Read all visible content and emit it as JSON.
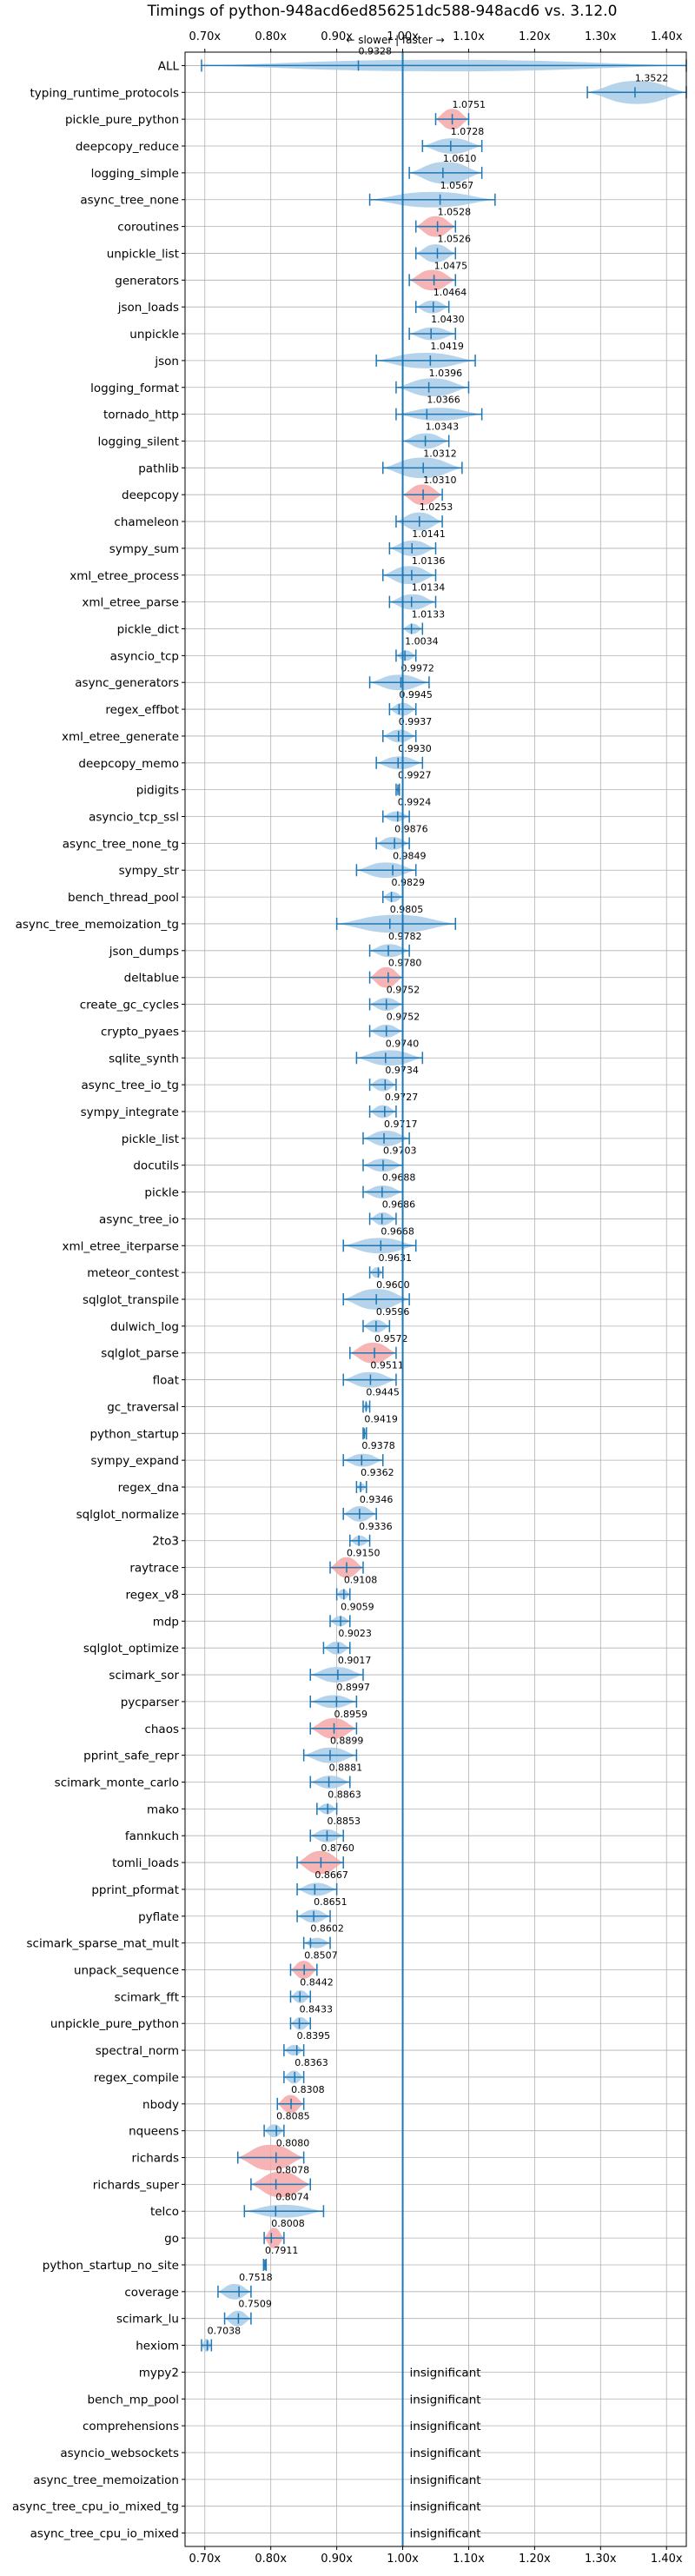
{
  "chart_data": {
    "type": "violin",
    "title": "Timings of python-948acd6ed856251dc588-948acd6 vs. 3.12.0",
    "direction_label": "← slower | faster →",
    "xlim": [
      0.67,
      1.43
    ],
    "reference_line": 1.0,
    "grid": true,
    "x_ticks": [
      {
        "value": 0.7,
        "label": "0.70x"
      },
      {
        "value": 0.8,
        "label": "0.80x"
      },
      {
        "value": 0.9,
        "label": "0.90x"
      },
      {
        "value": 1.0,
        "label": "1.00x"
      },
      {
        "value": 1.1,
        "label": "1.10x"
      },
      {
        "value": 1.2,
        "label": "1.20x"
      },
      {
        "value": 1.3,
        "label": "1.30x"
      },
      {
        "value": 1.4,
        "label": "1.40x"
      }
    ],
    "colors": {
      "regular": "#a8cbe8",
      "highlight": "#f4a7a8",
      "line": "#1f77b4"
    },
    "categories": [
      {
        "name": "ALL",
        "value": 0.9328,
        "label": "0.9328",
        "lo": 0.695,
        "hi": 1.43,
        "w": 0.45,
        "hl": false
      },
      {
        "name": "typing_runtime_protocols",
        "value": 1.3522,
        "label": "1.3522",
        "lo": 1.28,
        "hi": 1.43,
        "w": 0.9,
        "hl": false
      },
      {
        "name": "pickle_pure_python",
        "value": 1.0751,
        "label": "1.0751",
        "lo": 1.05,
        "hi": 1.1,
        "w": 0.8,
        "hl": true
      },
      {
        "name": "deepcopy_reduce",
        "value": 1.0728,
        "label": "1.0728",
        "lo": 1.03,
        "hi": 1.12,
        "w": 0.6,
        "hl": false
      },
      {
        "name": "logging_simple",
        "value": 1.061,
        "label": "1.0610",
        "lo": 1.01,
        "hi": 1.12,
        "w": 0.85,
        "hl": false
      },
      {
        "name": "async_tree_none",
        "value": 1.0567,
        "label": "1.0567",
        "lo": 0.95,
        "hi": 1.14,
        "w": 0.6,
        "hl": false
      },
      {
        "name": "coroutines",
        "value": 1.0528,
        "label": "1.0528",
        "lo": 1.02,
        "hi": 1.08,
        "w": 0.8,
        "hl": true
      },
      {
        "name": "unpickle_list",
        "value": 1.0526,
        "label": "1.0526",
        "lo": 1.02,
        "hi": 1.08,
        "w": 0.7,
        "hl": false
      },
      {
        "name": "generators",
        "value": 1.0475,
        "label": "1.0475",
        "lo": 1.01,
        "hi": 1.08,
        "w": 0.8,
        "hl": true
      },
      {
        "name": "json_loads",
        "value": 1.0464,
        "label": "1.0464",
        "lo": 1.02,
        "hi": 1.07,
        "w": 0.5,
        "hl": false
      },
      {
        "name": "unpickle",
        "value": 1.043,
        "label": "1.0430",
        "lo": 1.01,
        "hi": 1.08,
        "w": 0.5,
        "hl": false
      },
      {
        "name": "json",
        "value": 1.0419,
        "label": "1.0419",
        "lo": 0.96,
        "hi": 1.11,
        "w": 0.6,
        "hl": false
      },
      {
        "name": "logging_format",
        "value": 1.0396,
        "label": "1.0396",
        "lo": 0.99,
        "hi": 1.1,
        "w": 0.7,
        "hl": false
      },
      {
        "name": "tornado_http",
        "value": 1.0366,
        "label": "1.0366",
        "lo": 0.99,
        "hi": 1.12,
        "w": 0.5,
        "hl": false
      },
      {
        "name": "logging_silent",
        "value": 1.0343,
        "label": "1.0343",
        "lo": 1.0,
        "hi": 1.07,
        "w": 0.6,
        "hl": false
      },
      {
        "name": "pathlib",
        "value": 1.0312,
        "label": "1.0312",
        "lo": 0.97,
        "hi": 1.09,
        "w": 0.8,
        "hl": false
      },
      {
        "name": "deepcopy",
        "value": 1.031,
        "label": "1.0310",
        "lo": 1.0,
        "hi": 1.06,
        "w": 0.8,
        "hl": true
      },
      {
        "name": "chameleon",
        "value": 1.0253,
        "label": "1.0253",
        "lo": 0.99,
        "hi": 1.06,
        "w": 0.7,
        "hl": false
      },
      {
        "name": "sympy_sum",
        "value": 1.0141,
        "label": "1.0141",
        "lo": 0.98,
        "hi": 1.05,
        "w": 0.6,
        "hl": false
      },
      {
        "name": "xml_etree_process",
        "value": 1.0136,
        "label": "1.0136",
        "lo": 0.97,
        "hi": 1.05,
        "w": 0.7,
        "hl": false
      },
      {
        "name": "xml_etree_parse",
        "value": 1.0134,
        "label": "1.0134",
        "lo": 0.98,
        "hi": 1.05,
        "w": 0.6,
        "hl": false
      },
      {
        "name": "pickle_dict",
        "value": 1.0133,
        "label": "1.0133",
        "lo": 1.0,
        "hi": 1.03,
        "w": 0.4,
        "hl": false
      },
      {
        "name": "asyncio_tcp",
        "value": 1.0034,
        "label": "1.0034",
        "lo": 0.99,
        "hi": 1.02,
        "w": 0.4,
        "hl": false
      },
      {
        "name": "async_generators",
        "value": 0.9972,
        "label": "0.9972",
        "lo": 0.95,
        "hi": 1.04,
        "w": 0.6,
        "hl": false
      },
      {
        "name": "regex_effbot",
        "value": 0.9945,
        "label": "0.9945",
        "lo": 0.98,
        "hi": 1.02,
        "w": 0.5,
        "hl": false
      },
      {
        "name": "xml_etree_generate",
        "value": 0.9937,
        "label": "0.9937",
        "lo": 0.97,
        "hi": 1.02,
        "w": 0.5,
        "hl": false
      },
      {
        "name": "deepcopy_memo",
        "value": 0.993,
        "label": "0.9930",
        "lo": 0.96,
        "hi": 1.03,
        "w": 0.5,
        "hl": false
      },
      {
        "name": "pidigits",
        "value": 0.9927,
        "label": "0.9927",
        "lo": 0.99,
        "hi": 0.995,
        "w": 0.2,
        "hl": false
      },
      {
        "name": "asyncio_tcp_ssl",
        "value": 0.9924,
        "label": "0.9924",
        "lo": 0.97,
        "hi": 1.01,
        "w": 0.4,
        "hl": false
      },
      {
        "name": "async_tree_none_tg",
        "value": 0.9876,
        "label": "0.9876",
        "lo": 0.96,
        "hi": 1.01,
        "w": 0.5,
        "hl": false
      },
      {
        "name": "sympy_str",
        "value": 0.9849,
        "label": "0.9849",
        "lo": 0.93,
        "hi": 1.02,
        "w": 0.6,
        "hl": false
      },
      {
        "name": "bench_thread_pool",
        "value": 0.9829,
        "label": "0.9829",
        "lo": 0.97,
        "hi": 1.0,
        "w": 0.4,
        "hl": false
      },
      {
        "name": "async_tree_memoization_tg",
        "value": 0.9805,
        "label": "0.9805",
        "lo": 0.9,
        "hi": 1.08,
        "w": 0.7,
        "hl": false
      },
      {
        "name": "json_dumps",
        "value": 0.9782,
        "label": "0.9782",
        "lo": 0.95,
        "hi": 1.01,
        "w": 0.5,
        "hl": false
      },
      {
        "name": "deltablue",
        "value": 0.978,
        "label": "0.9780",
        "lo": 0.95,
        "hi": 1.0,
        "w": 0.8,
        "hl": true
      },
      {
        "name": "create_gc_cycles",
        "value": 0.9752,
        "label": "0.9752",
        "lo": 0.95,
        "hi": 1.0,
        "w": 0.5,
        "hl": false
      },
      {
        "name": "crypto_pyaes",
        "value": 0.9752,
        "label": "0.9752",
        "lo": 0.95,
        "hi": 1.0,
        "w": 0.5,
        "hl": false
      },
      {
        "name": "sqlite_synth",
        "value": 0.974,
        "label": "0.9740",
        "lo": 0.93,
        "hi": 1.03,
        "w": 0.6,
        "hl": false
      },
      {
        "name": "async_tree_io_tg",
        "value": 0.9734,
        "label": "0.9734",
        "lo": 0.95,
        "hi": 0.99,
        "w": 0.5,
        "hl": false
      },
      {
        "name": "sympy_integrate",
        "value": 0.9727,
        "label": "0.9727",
        "lo": 0.95,
        "hi": 0.99,
        "w": 0.5,
        "hl": false
      },
      {
        "name": "pickle_list",
        "value": 0.9717,
        "label": "0.9717",
        "lo": 0.94,
        "hi": 1.01,
        "w": 0.6,
        "hl": false
      },
      {
        "name": "docutils",
        "value": 0.9703,
        "label": "0.9703",
        "lo": 0.94,
        "hi": 1.0,
        "w": 0.5,
        "hl": false
      },
      {
        "name": "pickle",
        "value": 0.9688,
        "label": "0.9688",
        "lo": 0.94,
        "hi": 1.0,
        "w": 0.5,
        "hl": false
      },
      {
        "name": "async_tree_io",
        "value": 0.9686,
        "label": "0.9686",
        "lo": 0.95,
        "hi": 0.99,
        "w": 0.5,
        "hl": false
      },
      {
        "name": "xml_etree_iterparse",
        "value": 0.9668,
        "label": "0.9668",
        "lo": 0.91,
        "hi": 1.02,
        "w": 0.6,
        "hl": false
      },
      {
        "name": "meteor_contest",
        "value": 0.9631,
        "label": "0.9631",
        "lo": 0.95,
        "hi": 0.97,
        "w": 0.4,
        "hl": false
      },
      {
        "name": "sqlglot_transpile",
        "value": 0.96,
        "label": "0.9600",
        "lo": 0.91,
        "hi": 1.01,
        "w": 0.8,
        "hl": false
      },
      {
        "name": "dulwich_log",
        "value": 0.9596,
        "label": "0.9596",
        "lo": 0.94,
        "hi": 0.98,
        "w": 0.5,
        "hl": false
      },
      {
        "name": "sqlglot_parse",
        "value": 0.9572,
        "label": "0.9572",
        "lo": 0.92,
        "hi": 0.99,
        "w": 0.8,
        "hl": true
      },
      {
        "name": "float",
        "value": 0.9511,
        "label": "0.9511",
        "lo": 0.91,
        "hi": 0.99,
        "w": 0.6,
        "hl": false
      },
      {
        "name": "gc_traversal",
        "value": 0.9445,
        "label": "0.9445",
        "lo": 0.94,
        "hi": 0.95,
        "w": 0.3,
        "hl": false
      },
      {
        "name": "python_startup",
        "value": 0.9419,
        "label": "0.9419",
        "lo": 0.94,
        "hi": 0.945,
        "w": 0.3,
        "hl": false
      },
      {
        "name": "sympy_expand",
        "value": 0.9378,
        "label": "0.9378",
        "lo": 0.91,
        "hi": 0.97,
        "w": 0.5,
        "hl": false
      },
      {
        "name": "regex_dna",
        "value": 0.9362,
        "label": "0.9362",
        "lo": 0.93,
        "hi": 0.945,
        "w": 0.3,
        "hl": false
      },
      {
        "name": "sqlglot_normalize",
        "value": 0.9346,
        "label": "0.9346",
        "lo": 0.91,
        "hi": 0.96,
        "w": 0.6,
        "hl": false
      },
      {
        "name": "2to3",
        "value": 0.9336,
        "label": "0.9336",
        "lo": 0.92,
        "hi": 0.95,
        "w": 0.4,
        "hl": false
      },
      {
        "name": "raytrace",
        "value": 0.915,
        "label": "0.9150",
        "lo": 0.89,
        "hi": 0.94,
        "w": 0.8,
        "hl": true
      },
      {
        "name": "regex_v8",
        "value": 0.9108,
        "label": "0.9108",
        "lo": 0.9,
        "hi": 0.92,
        "w": 0.4,
        "hl": false
      },
      {
        "name": "mdp",
        "value": 0.9059,
        "label": "0.9059",
        "lo": 0.89,
        "hi": 0.92,
        "w": 0.4,
        "hl": false
      },
      {
        "name": "sqlglot_optimize",
        "value": 0.9023,
        "label": "0.9023",
        "lo": 0.88,
        "hi": 0.92,
        "w": 0.5,
        "hl": false
      },
      {
        "name": "scimark_sor",
        "value": 0.9017,
        "label": "0.9017",
        "lo": 0.86,
        "hi": 0.94,
        "w": 0.6,
        "hl": false
      },
      {
        "name": "pycparser",
        "value": 0.8997,
        "label": "0.8997",
        "lo": 0.86,
        "hi": 0.93,
        "w": 0.5,
        "hl": false
      },
      {
        "name": "chaos",
        "value": 0.8959,
        "label": "0.8959",
        "lo": 0.86,
        "hi": 0.93,
        "w": 0.8,
        "hl": true
      },
      {
        "name": "pprint_safe_repr",
        "value": 0.8899,
        "label": "0.8899",
        "lo": 0.85,
        "hi": 0.93,
        "w": 0.6,
        "hl": false
      },
      {
        "name": "scimark_monte_carlo",
        "value": 0.8881,
        "label": "0.8881",
        "lo": 0.86,
        "hi": 0.92,
        "w": 0.5,
        "hl": false
      },
      {
        "name": "mako",
        "value": 0.8863,
        "label": "0.8863",
        "lo": 0.87,
        "hi": 0.9,
        "w": 0.4,
        "hl": false
      },
      {
        "name": "fannkuch",
        "value": 0.8853,
        "label": "0.8853",
        "lo": 0.86,
        "hi": 0.91,
        "w": 0.5,
        "hl": false
      },
      {
        "name": "tomli_loads",
        "value": 0.876,
        "label": "0.8760",
        "lo": 0.84,
        "hi": 0.91,
        "w": 0.9,
        "hl": true
      },
      {
        "name": "pprint_pformat",
        "value": 0.8667,
        "label": "0.8667",
        "lo": 0.84,
        "hi": 0.9,
        "w": 0.5,
        "hl": false
      },
      {
        "name": "pyflate",
        "value": 0.8651,
        "label": "0.8651",
        "lo": 0.84,
        "hi": 0.89,
        "w": 0.5,
        "hl": false
      },
      {
        "name": "scimark_sparse_mat_mult",
        "value": 0.8602,
        "label": "0.8602",
        "lo": 0.85,
        "hi": 0.89,
        "w": 0.4,
        "hl": false
      },
      {
        "name": "unpack_sequence",
        "value": 0.8507,
        "label": "0.8507",
        "lo": 0.83,
        "hi": 0.87,
        "w": 0.7,
        "hl": true
      },
      {
        "name": "scimark_fft",
        "value": 0.8442,
        "label": "0.8442",
        "lo": 0.83,
        "hi": 0.86,
        "w": 0.5,
        "hl": false
      },
      {
        "name": "unpickle_pure_python",
        "value": 0.8433,
        "label": "0.8433",
        "lo": 0.83,
        "hi": 0.86,
        "w": 0.5,
        "hl": false
      },
      {
        "name": "spectral_norm",
        "value": 0.8395,
        "label": "0.8395",
        "lo": 0.82,
        "hi": 0.85,
        "w": 0.4,
        "hl": false
      },
      {
        "name": "regex_compile",
        "value": 0.8363,
        "label": "0.8363",
        "lo": 0.82,
        "hi": 0.85,
        "w": 0.5,
        "hl": false
      },
      {
        "name": "nbody",
        "value": 0.8308,
        "label": "0.8308",
        "lo": 0.81,
        "hi": 0.85,
        "w": 0.7,
        "hl": true
      },
      {
        "name": "nqueens",
        "value": 0.8085,
        "label": "0.8085",
        "lo": 0.79,
        "hi": 0.82,
        "w": 0.5,
        "hl": false
      },
      {
        "name": "richards",
        "value": 0.808,
        "label": "0.8080",
        "lo": 0.75,
        "hi": 0.85,
        "w": 1.0,
        "hl": true
      },
      {
        "name": "richards_super",
        "value": 0.8078,
        "label": "0.8078",
        "lo": 0.77,
        "hi": 0.86,
        "w": 1.0,
        "hl": true
      },
      {
        "name": "telco",
        "value": 0.8074,
        "label": "0.8074",
        "lo": 0.76,
        "hi": 0.88,
        "w": 0.5,
        "hl": false
      },
      {
        "name": "go",
        "value": 0.8008,
        "label": "0.8008",
        "lo": 0.79,
        "hi": 0.82,
        "w": 0.8,
        "hl": true
      },
      {
        "name": "python_startup_no_site",
        "value": 0.7911,
        "label": "0.7911",
        "lo": 0.789,
        "hi": 0.793,
        "w": 0.3,
        "hl": false
      },
      {
        "name": "coverage",
        "value": 0.7518,
        "label": "0.7518",
        "lo": 0.72,
        "hi": 0.77,
        "w": 0.6,
        "hl": false
      },
      {
        "name": "scimark_lu",
        "value": 0.7509,
        "label": "0.7509",
        "lo": 0.73,
        "hi": 0.77,
        "w": 0.6,
        "hl": false
      },
      {
        "name": "hexiom",
        "value": 0.7038,
        "label": "0.7038",
        "lo": 0.695,
        "hi": 0.71,
        "w": 0.5,
        "hl": false
      },
      {
        "name": "mypy2",
        "value": null,
        "label": "insignificant"
      },
      {
        "name": "bench_mp_pool",
        "value": null,
        "label": "insignificant"
      },
      {
        "name": "comprehensions",
        "value": null,
        "label": "insignificant"
      },
      {
        "name": "asyncio_websockets",
        "value": null,
        "label": "insignificant"
      },
      {
        "name": "async_tree_memoization",
        "value": null,
        "label": "insignificant"
      },
      {
        "name": "async_tree_cpu_io_mixed_tg",
        "value": null,
        "label": "insignificant"
      },
      {
        "name": "async_tree_cpu_io_mixed",
        "value": null,
        "label": "insignificant"
      }
    ]
  }
}
